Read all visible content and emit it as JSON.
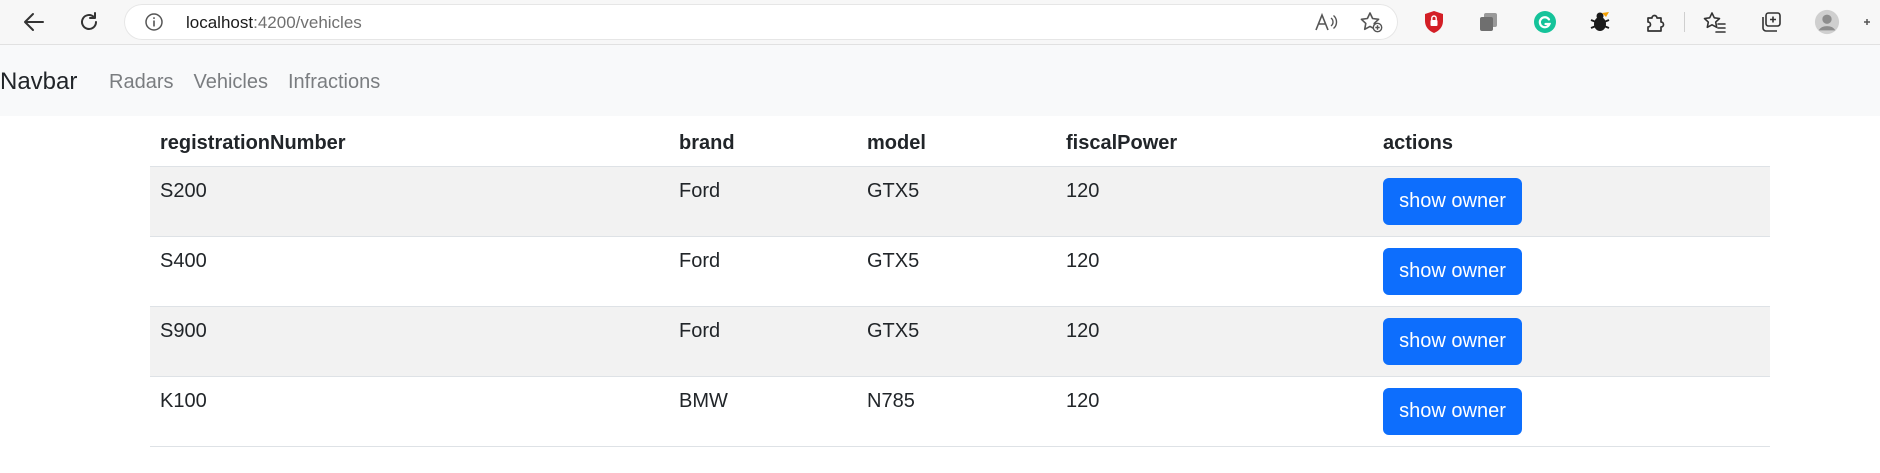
{
  "browser": {
    "url_host": "localhost",
    "url_path": ":4200/vehicles",
    "icons": {
      "back": "back-arrow-icon",
      "refresh": "refresh-icon",
      "info": "info-icon",
      "read_aloud": "read-aloud-icon",
      "favorite_add": "add-favorite-icon",
      "favorites": "favorites-icon",
      "collections": "collections-icon",
      "profile": "profile-avatar-icon"
    }
  },
  "navbar": {
    "brand": "Navbar",
    "links": [
      "Radars",
      "Vehicles",
      "Infractions"
    ]
  },
  "table": {
    "headers": [
      "registrationNumber",
      "brand",
      "model",
      "fiscalPower",
      "actions"
    ],
    "rows": [
      {
        "registrationNumber": "S200",
        "brand": "Ford",
        "model": "GTX5",
        "fiscalPower": "120",
        "action": "show owner"
      },
      {
        "registrationNumber": "S400",
        "brand": "Ford",
        "model": "GTX5",
        "fiscalPower": "120",
        "action": "show owner"
      },
      {
        "registrationNumber": "S900",
        "brand": "Ford",
        "model": "GTX5",
        "fiscalPower": "120",
        "action": "show owner"
      },
      {
        "registrationNumber": "K100",
        "brand": "BMW",
        "model": "N785",
        "fiscalPower": "120",
        "action": "show owner"
      }
    ]
  },
  "colors": {
    "primary_button": "#0d6efd",
    "navbar_bg": "#f8f9fa",
    "stripe_bg": "#f2f2f2"
  }
}
